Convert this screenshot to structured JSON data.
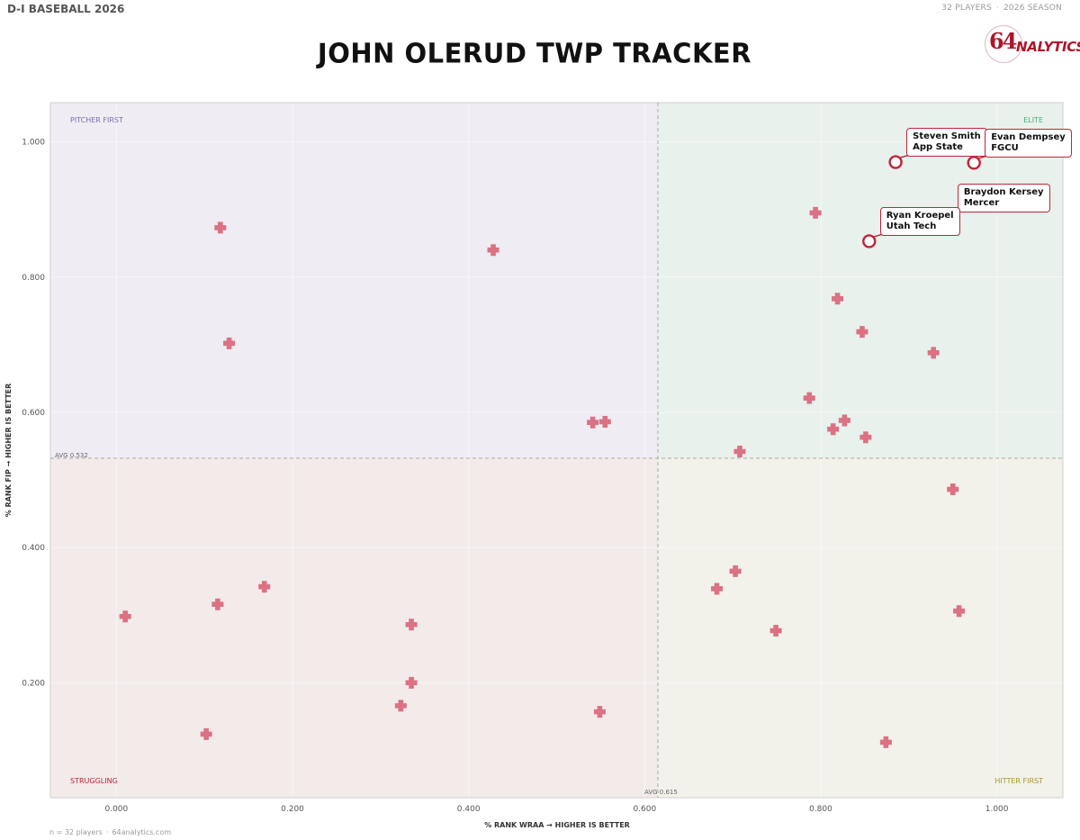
{
  "header": {
    "league": "D-I BASEBALL 2026",
    "players_count": "32 PLAYERS",
    "season": "2026 SEASON",
    "title": "JOHN OLERUD TWP TRACKER",
    "logo_number": "64",
    "logo_word": "NALYTICS"
  },
  "footer": {
    "n_text": "n = 32 players",
    "site": "64analytics.com"
  },
  "colors": {
    "marker": "#d9667a",
    "highlight": "#c0243a",
    "q_pitcher_first": "#efecf3",
    "q_elite": "#e8f1ec",
    "q_struggling": "#f3eaea",
    "q_hitter_first": "#f2f2ea"
  },
  "chart_data": {
    "type": "scatter",
    "title": "JOHN OLERUD TWP TRACKER",
    "xlabel": "% RANK WRAA",
    "xlabel_suffix": "HIGHER IS BETTER",
    "ylabel": "% RANK FIP",
    "ylabel_suffix": "HIGHER IS BETTER",
    "xlim": [
      -0.075,
      1.075
    ],
    "ylim": [
      0.03,
      1.058
    ],
    "xticks": [
      0.0,
      0.2,
      0.4,
      0.6,
      0.8,
      1.0
    ],
    "xtick_labels": [
      "0.000",
      "0.200",
      "0.400",
      "0.600",
      "0.800",
      "1.000"
    ],
    "yticks": [
      0.2,
      0.4,
      0.6,
      0.8,
      1.0
    ],
    "ytick_labels": [
      "0.200",
      "0.400",
      "0.600",
      "0.800",
      "1.000"
    ],
    "avg_x": 0.615,
    "avg_y": 0.532,
    "avg_x_label": "AVG 0.615",
    "avg_y_label": "AVG 0.532",
    "quadrants": {
      "top_left": "PITCHER FIRST",
      "top_right": "ELITE",
      "bottom_left": "STRUGGLING",
      "bottom_right": "HITTER FIRST"
    },
    "points": [
      {
        "x": 0.118,
        "y": 0.873
      },
      {
        "x": 0.428,
        "y": 0.84
      },
      {
        "x": 0.128,
        "y": 0.702
      },
      {
        "x": 0.541,
        "y": 0.585
      },
      {
        "x": 0.555,
        "y": 0.586
      },
      {
        "x": 0.794,
        "y": 0.895
      },
      {
        "x": 0.819,
        "y": 0.768
      },
      {
        "x": 0.847,
        "y": 0.719
      },
      {
        "x": 0.928,
        "y": 0.688
      },
      {
        "x": 0.787,
        "y": 0.621
      },
      {
        "x": 0.827,
        "y": 0.588
      },
      {
        "x": 0.814,
        "y": 0.575
      },
      {
        "x": 0.851,
        "y": 0.563
      },
      {
        "x": 0.708,
        "y": 0.542
      },
      {
        "x": 0.95,
        "y": 0.486
      },
      {
        "x": 0.703,
        "y": 0.365
      },
      {
        "x": 0.682,
        "y": 0.339
      },
      {
        "x": 0.957,
        "y": 0.306
      },
      {
        "x": 0.749,
        "y": 0.277
      },
      {
        "x": 0.874,
        "y": 0.112
      },
      {
        "x": 0.01,
        "y": 0.298
      },
      {
        "x": 0.115,
        "y": 0.316
      },
      {
        "x": 0.168,
        "y": 0.342
      },
      {
        "x": 0.335,
        "y": 0.286
      },
      {
        "x": 0.335,
        "y": 0.2
      },
      {
        "x": 0.323,
        "y": 0.166
      },
      {
        "x": 0.102,
        "y": 0.124
      },
      {
        "x": 0.549,
        "y": 0.157
      }
    ],
    "highlighted": [
      {
        "name": "Steven Smith",
        "team": "App State",
        "x": 0.885,
        "y": 0.97
      },
      {
        "name": "Evan Dempsey",
        "team": "FGCU",
        "x": 0.974,
        "y": 0.969
      },
      {
        "name": "Braydon Kersey",
        "team": "Mercer",
        "x": 0.943,
        "y": 0.887
      },
      {
        "name": "Ryan Kroepel",
        "team": "Utah Tech",
        "x": 0.855,
        "y": 0.853
      }
    ]
  }
}
